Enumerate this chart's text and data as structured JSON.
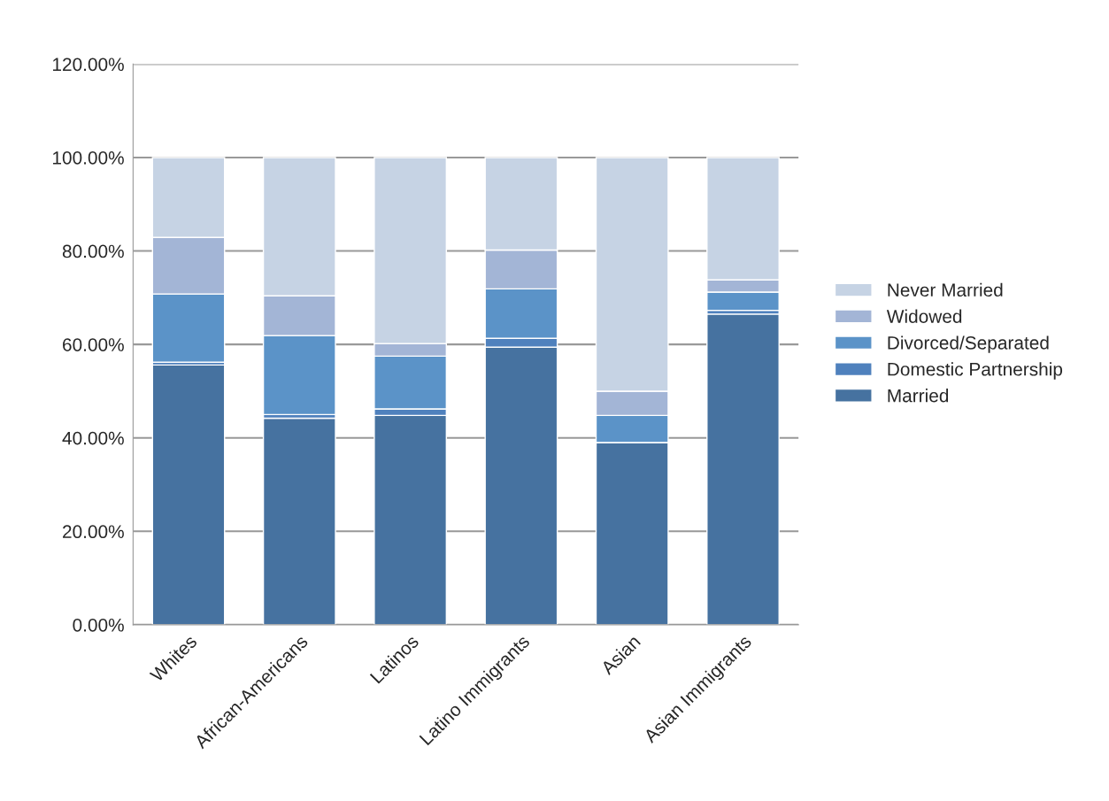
{
  "chart_data": {
    "type": "bar",
    "stacked": true,
    "categories": [
      "Whites",
      "African-Americans",
      "Latinos",
      "Latino Immigrants",
      "Asian",
      "Asian Immigrants"
    ],
    "series": [
      {
        "name": "Married",
        "color": "#4672a0",
        "values": [
          55.6,
          44.2,
          44.8,
          59.4,
          39.0,
          66.5
        ]
      },
      {
        "name": "Domestic Partnership",
        "color": "#4f81bd",
        "values": [
          0.6,
          0.8,
          1.4,
          1.9,
          null,
          0.8
        ]
      },
      {
        "name": "Divorced/Separated",
        "color": "#5b93c8",
        "values": [
          14.6,
          16.9,
          11.3,
          10.6,
          5.8,
          3.9
        ]
      },
      {
        "name": "Widowed",
        "color": "#a3b5d6",
        "values": [
          12.1,
          8.5,
          2.7,
          8.3,
          5.2,
          2.6
        ]
      },
      {
        "name": "Never Married",
        "color": "#c6d3e4",
        "values": [
          17.1,
          29.6,
          39.8,
          19.8,
          50.0,
          26.2
        ]
      }
    ],
    "ylim": [
      0,
      120
    ],
    "yticks": [
      {
        "value": 0,
        "label": "0.00%"
      },
      {
        "value": 20,
        "label": "20.00%"
      },
      {
        "value": 40,
        "label": "40.00%"
      },
      {
        "value": 60,
        "label": "60.00%"
      },
      {
        "value": 80,
        "label": "80.00%"
      },
      {
        "value": 100,
        "label": "100.00%"
      },
      {
        "value": 120,
        "label": "120.00%"
      }
    ],
    "grid": "y",
    "legend": "right"
  }
}
